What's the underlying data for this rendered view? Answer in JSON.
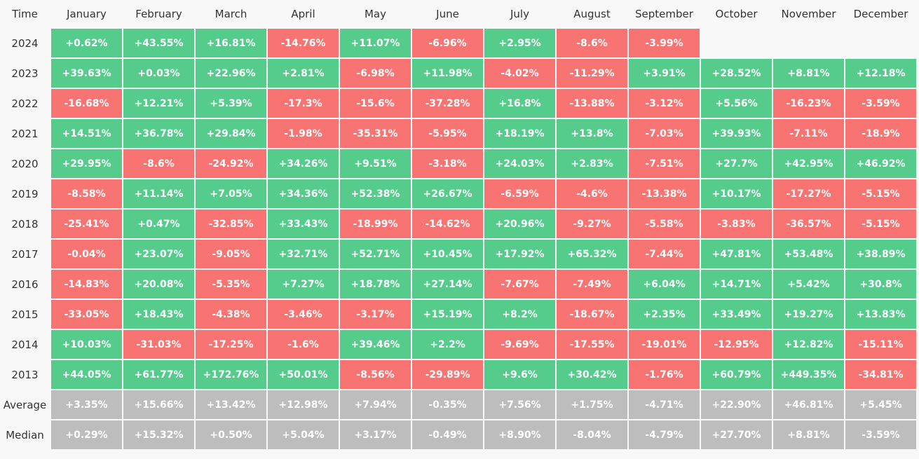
{
  "table": {
    "header": [
      "Time",
      "January",
      "February",
      "March",
      "April",
      "May",
      "June",
      "July",
      "August",
      "September",
      "October",
      "November",
      "December"
    ],
    "colors": {
      "positive": "#55cc8b",
      "negative": "#f87473",
      "summary": "#bdbdbd"
    },
    "rows": [
      {
        "label": "2024",
        "cells": [
          "+0.62%",
          "+43.55%",
          "+16.81%",
          "-14.76%",
          "+11.07%",
          "-6.96%",
          "+2.95%",
          "-8.6%",
          "-3.99%"
        ]
      },
      {
        "label": "2023",
        "cells": [
          "+39.63%",
          "+0.03%",
          "+22.96%",
          "+2.81%",
          "-6.98%",
          "+11.98%",
          "-4.02%",
          "-11.29%",
          "+3.91%",
          "+28.52%",
          "+8.81%",
          "+12.18%"
        ]
      },
      {
        "label": "2022",
        "cells": [
          "-16.68%",
          "+12.21%",
          "+5.39%",
          "-17.3%",
          "-15.6%",
          "-37.28%",
          "+16.8%",
          "-13.88%",
          "-3.12%",
          "+5.56%",
          "-16.23%",
          "-3.59%"
        ]
      },
      {
        "label": "2021",
        "cells": [
          "+14.51%",
          "+36.78%",
          "+29.84%",
          "-1.98%",
          "-35.31%",
          "-5.95%",
          "+18.19%",
          "+13.8%",
          "-7.03%",
          "+39.93%",
          "-7.11%",
          "-18.9%"
        ]
      },
      {
        "label": "2020",
        "cells": [
          "+29.95%",
          "-8.6%",
          "-24.92%",
          "+34.26%",
          "+9.51%",
          "-3.18%",
          "+24.03%",
          "+2.83%",
          "-7.51%",
          "+27.7%",
          "+42.95%",
          "+46.92%"
        ]
      },
      {
        "label": "2019",
        "cells": [
          "-8.58%",
          "+11.14%",
          "+7.05%",
          "+34.36%",
          "+52.38%",
          "+26.67%",
          "-6.59%",
          "-4.6%",
          "-13.38%",
          "+10.17%",
          "-17.27%",
          "-5.15%"
        ]
      },
      {
        "label": "2018",
        "cells": [
          "-25.41%",
          "+0.47%",
          "-32.85%",
          "+33.43%",
          "-18.99%",
          "-14.62%",
          "+20.96%",
          "-9.27%",
          "-5.58%",
          "-3.83%",
          "-36.57%",
          "-5.15%"
        ]
      },
      {
        "label": "2017",
        "cells": [
          "-0.04%",
          "+23.07%",
          "-9.05%",
          "+32.71%",
          "+52.71%",
          "+10.45%",
          "+17.92%",
          "+65.32%",
          "-7.44%",
          "+47.81%",
          "+53.48%",
          "+38.89%"
        ]
      },
      {
        "label": "2016",
        "cells": [
          "-14.83%",
          "+20.08%",
          "-5.35%",
          "+7.27%",
          "+18.78%",
          "+27.14%",
          "-7.67%",
          "-7.49%",
          "+6.04%",
          "+14.71%",
          "+5.42%",
          "+30.8%"
        ]
      },
      {
        "label": "2015",
        "cells": [
          "-33.05%",
          "+18.43%",
          "-4.38%",
          "-3.46%",
          "-3.17%",
          "+15.19%",
          "+8.2%",
          "-18.67%",
          "+2.35%",
          "+33.49%",
          "+19.27%",
          "+13.83%"
        ]
      },
      {
        "label": "2014",
        "cells": [
          "+10.03%",
          "-31.03%",
          "-17.25%",
          "-1.6%",
          "+39.46%",
          "+2.2%",
          "-9.69%",
          "-17.55%",
          "-19.01%",
          "-12.95%",
          "+12.82%",
          "-15.11%"
        ]
      },
      {
        "label": "2013",
        "cells": [
          "+44.05%",
          "+61.77%",
          "+172.76%",
          "+50.01%",
          "-8.56%",
          "-29.89%",
          "+9.6%",
          "+30.42%",
          "-1.76%",
          "+60.79%",
          "+449.35%",
          "-34.81%"
        ]
      }
    ],
    "summary_rows": [
      {
        "label": "Average",
        "cells": [
          "+3.35%",
          "+15.66%",
          "+13.42%",
          "+12.98%",
          "+7.94%",
          "-0.35%",
          "+7.56%",
          "+1.75%",
          "-4.71%",
          "+22.90%",
          "+46.81%",
          "+5.45%"
        ]
      },
      {
        "label": "Median",
        "cells": [
          "+0.29%",
          "+15.32%",
          "+0.50%",
          "+5.04%",
          "+3.17%",
          "-0.49%",
          "+8.90%",
          "-8.04%",
          "-4.79%",
          "+27.70%",
          "+8.81%",
          "-3.59%"
        ]
      }
    ]
  }
}
